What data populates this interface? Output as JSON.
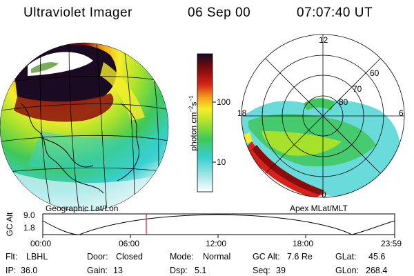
{
  "header": {
    "instrument": "Ultraviolet Imager",
    "date": "06 Sep 00",
    "time": "07:07:40 UT"
  },
  "left_panel": {
    "caption": "Geographic Lat/Lon"
  },
  "right_panel": {
    "caption": "Apex MLat/MLT",
    "mlt_labels": [
      "12",
      "18",
      "6",
      "0"
    ],
    "lat_labels": [
      "60",
      "70",
      "80"
    ]
  },
  "colorbar": {
    "label": "photon cm⁻²s⁻¹",
    "label_parts": {
      "base": "photon cm",
      "exp1": "−2",
      "mid": "s",
      "exp2": "−1"
    },
    "ticks": [
      "100",
      "10"
    ],
    "scale": "log",
    "colors": [
      "#ffffff",
      "#3ad2d2",
      "#3ec85a",
      "#a6e22c",
      "#f5ee2a",
      "#f5a11a",
      "#d6221a",
      "#8a0c0c",
      "#2a0c2a"
    ]
  },
  "altitude_plot": {
    "ylabel": "GC Alt",
    "yticks": [
      "9.0",
      "1.8"
    ],
    "xticks": [
      "00:00",
      "06:00",
      "12:00",
      "18:00",
      "23:59"
    ],
    "current_marker_color": "#d32020"
  },
  "info": {
    "flt": {
      "label": "Flt:",
      "value": "LBHL"
    },
    "door": {
      "label": "Door:",
      "value": "Closed"
    },
    "mode": {
      "label": "Mode:",
      "value": "Normal"
    },
    "gcalt": {
      "label": "GC Alt:",
      "value": "7.6 Re"
    },
    "glat": {
      "label": "GLat:",
      "value": "45.6"
    },
    "ip": {
      "label": "IP:",
      "value": "36.0"
    },
    "gain": {
      "label": "Gain:",
      "value": "13"
    },
    "dsp": {
      "label": "Dsp:",
      "value": "5.1"
    },
    "seq": {
      "label": "Seq:",
      "value": "39"
    },
    "glon": {
      "label": "GLon:",
      "value": "268.4"
    }
  }
}
